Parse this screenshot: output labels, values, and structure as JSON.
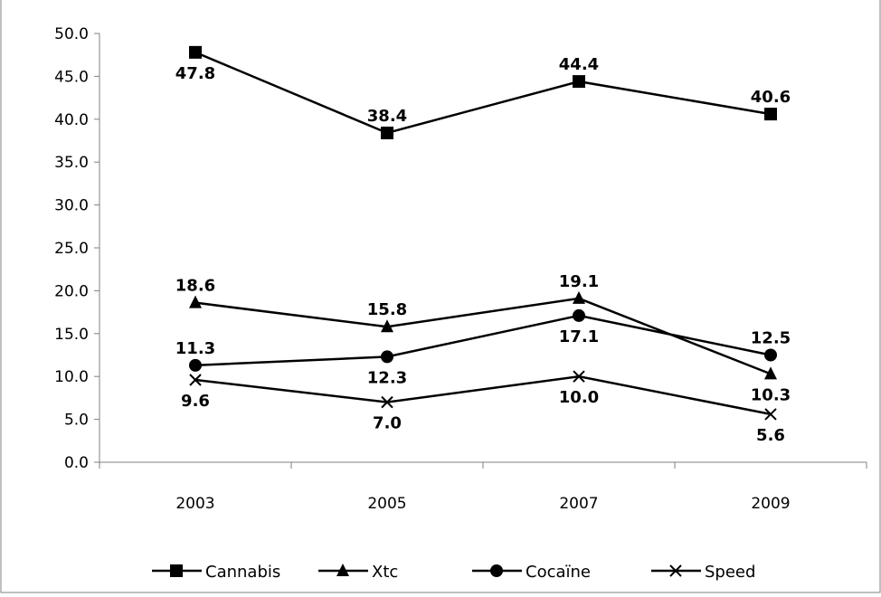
{
  "chart_data": {
    "type": "line",
    "categories": [
      "2003",
      "2005",
      "2007",
      "2009"
    ],
    "ylim": [
      0,
      50
    ],
    "yticks": [
      "0.0",
      "5.0",
      "10.0",
      "15.0",
      "20.0",
      "25.0",
      "30.0",
      "35.0",
      "40.0",
      "45.0",
      "50.0"
    ],
    "grid": false,
    "legend_position": "bottom",
    "series": [
      {
        "name": "Cannabis",
        "marker": "square",
        "values": [
          47.8,
          38.4,
          44.4,
          40.6
        ],
        "labels": [
          "47.8",
          "38.4",
          "44.4",
          "40.6"
        ],
        "label_pos": [
          "below",
          "above",
          "above",
          "above"
        ]
      },
      {
        "name": "Xtc",
        "marker": "triangle",
        "values": [
          18.6,
          15.8,
          19.1,
          10.3
        ],
        "labels": [
          "18.6",
          "15.8",
          "19.1",
          "10.3"
        ],
        "label_pos": [
          "above",
          "above",
          "above",
          "below"
        ]
      },
      {
        "name": "Cocaïne",
        "marker": "circle",
        "values": [
          11.3,
          12.3,
          17.1,
          12.5
        ],
        "labels": [
          "11.3",
          "12.3",
          "17.1",
          "12.5"
        ],
        "label_pos": [
          "above",
          "below",
          "below",
          "above"
        ]
      },
      {
        "name": "Speed",
        "marker": "x",
        "values": [
          9.6,
          7.0,
          10.0,
          5.6
        ],
        "labels": [
          "9.6",
          "7.0",
          "10.0",
          "5.6"
        ],
        "label_pos": [
          "below",
          "below",
          "below",
          "below"
        ]
      }
    ],
    "colors": {
      "line": "#000000",
      "axis": "#808080",
      "frame": "#808080"
    }
  }
}
